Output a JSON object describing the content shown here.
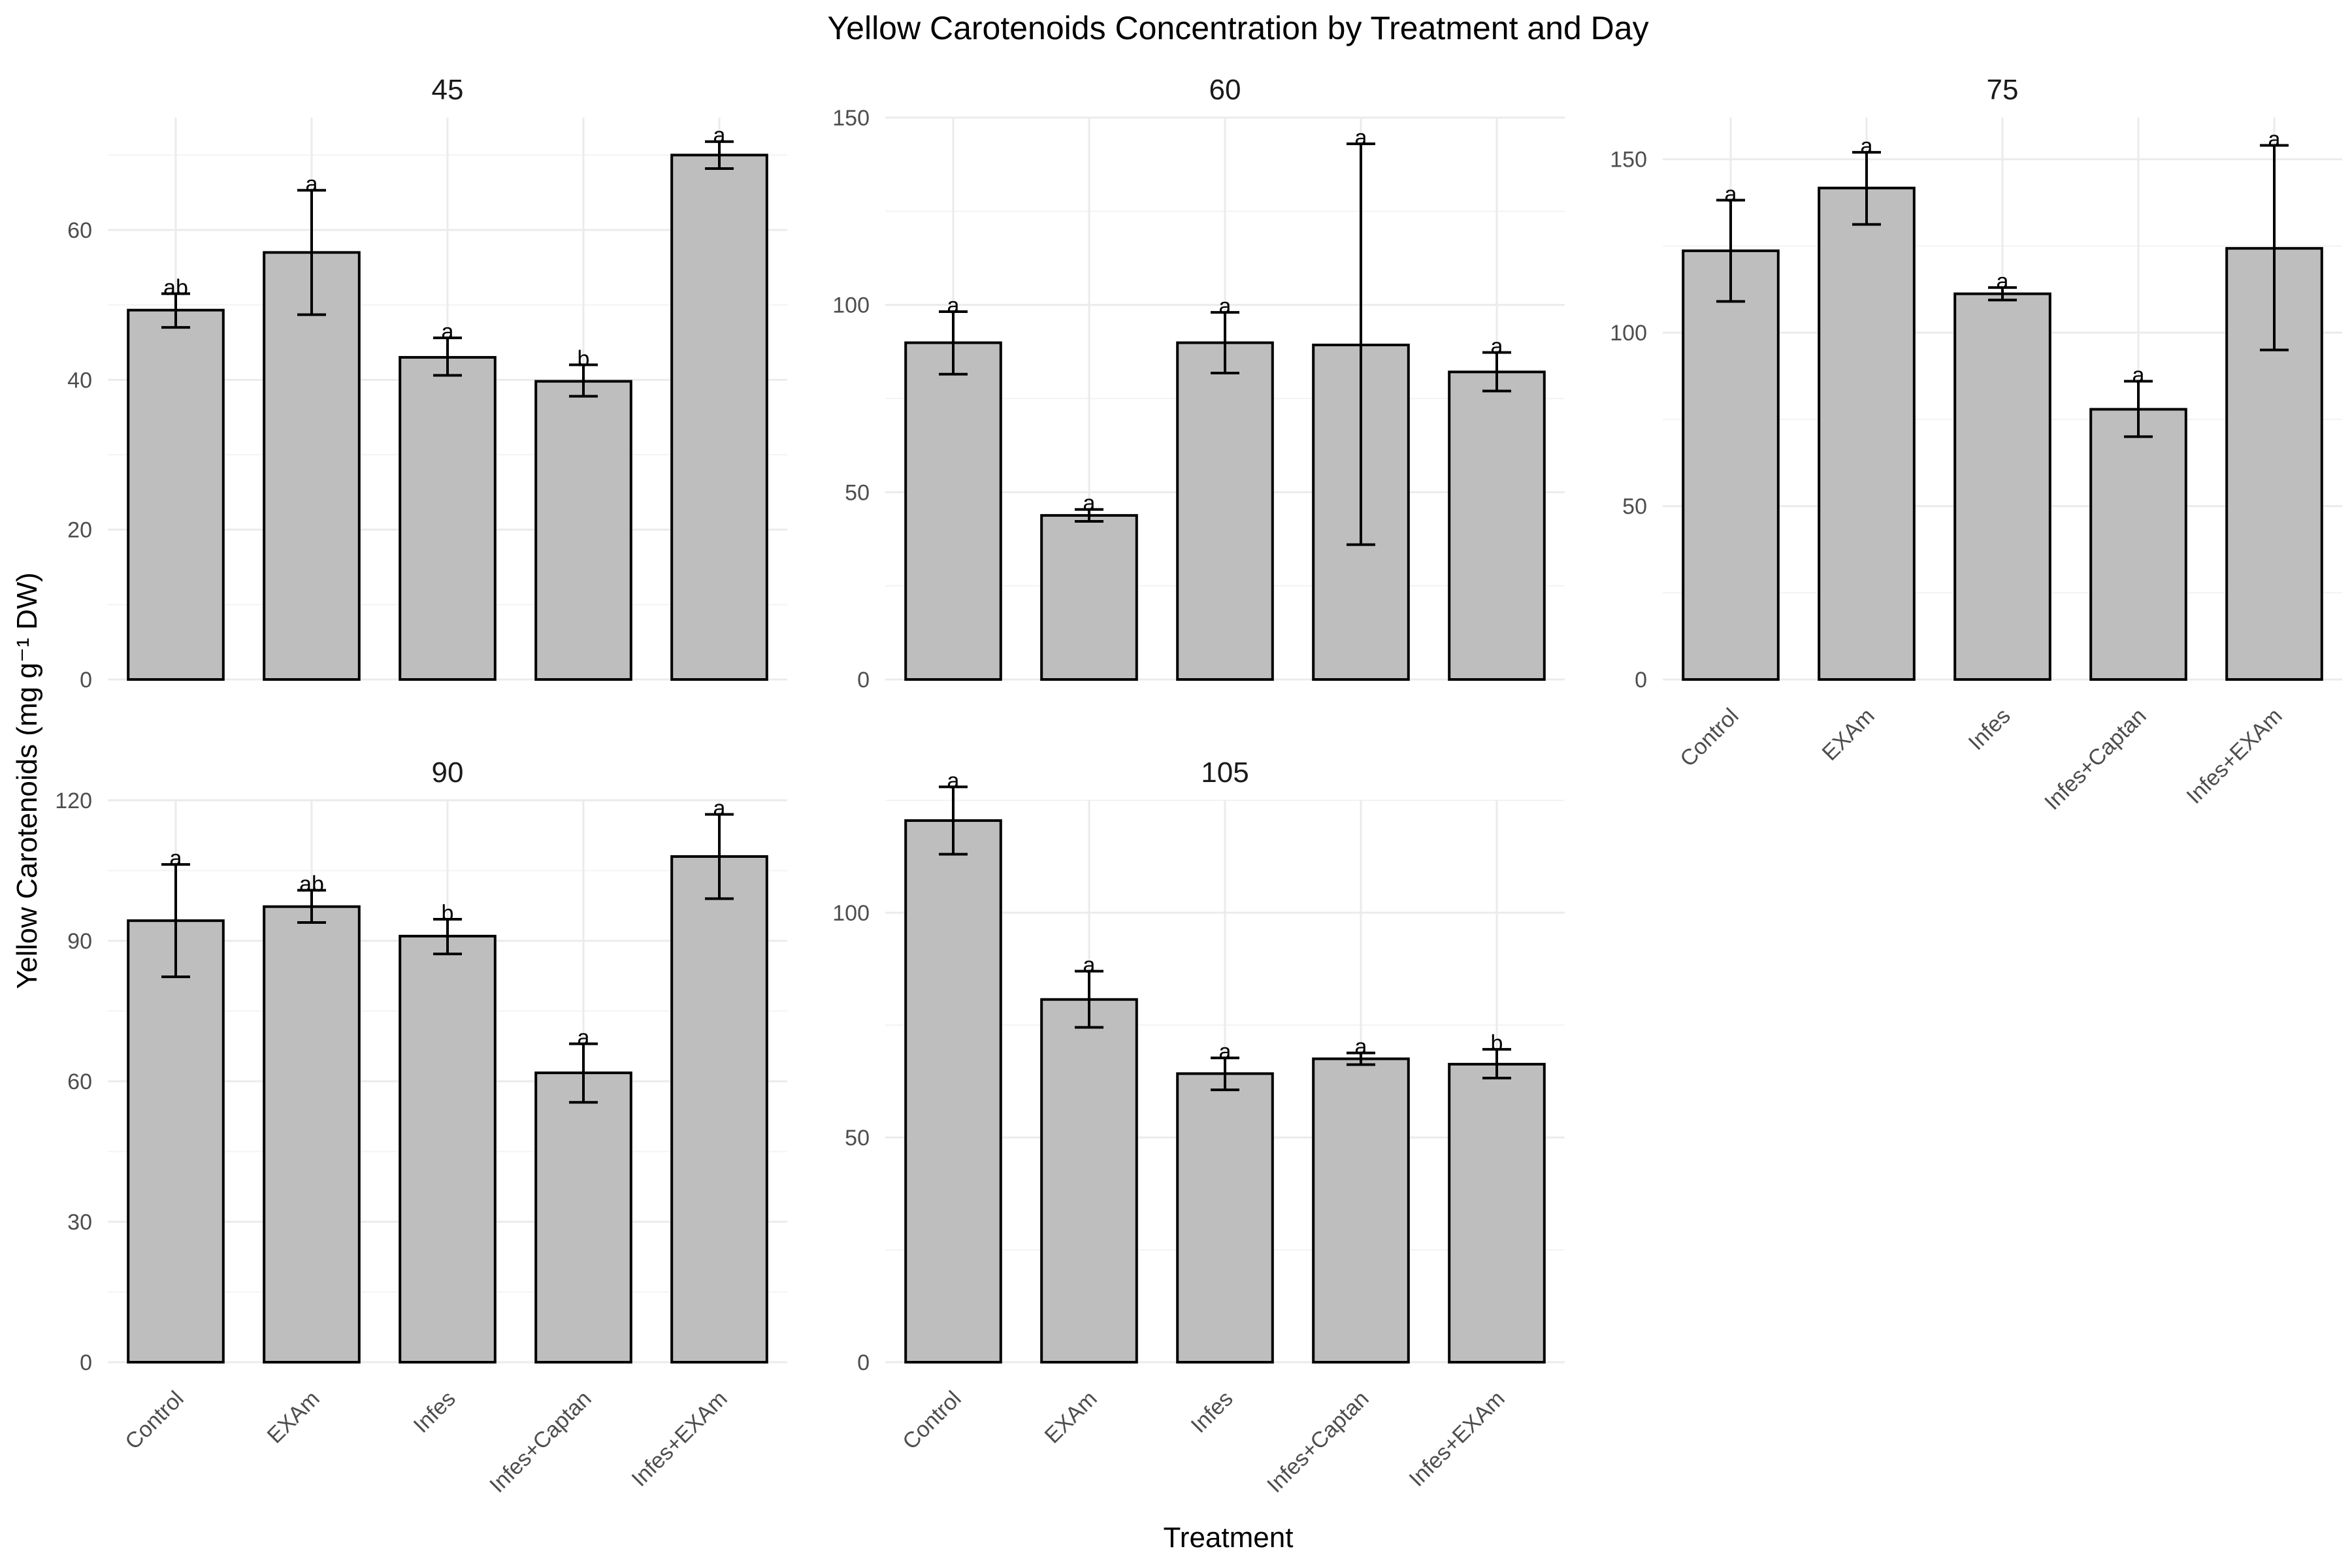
{
  "chart_data": {
    "type": "bar",
    "title": "Yellow Carotenoids Concentration by Treatment and Day",
    "xlabel": "Treatment",
    "ylabel": "Yellow Carotenoids (mg g⁻¹ DW)",
    "categories": [
      "Control",
      "EXAm",
      "Infes",
      "Infes+Captan",
      "Infes+EXAm"
    ],
    "grid": true,
    "legend": "none",
    "bar_color": "#bebebe",
    "panels": [
      {
        "facet": "45",
        "ylim": [
          0,
          75
        ],
        "yticks": [
          0,
          20,
          40,
          60
        ],
        "values": [
          49.3,
          57.0,
          43.0,
          39.8,
          70.0
        ],
        "error_low": [
          47.0,
          48.7,
          40.6,
          37.8,
          68.2
        ],
        "error_high": [
          51.5,
          65.3,
          45.6,
          42.0,
          71.8
        ],
        "labels": [
          "ab",
          "a",
          "a",
          "b",
          "a"
        ]
      },
      {
        "facet": "60",
        "ylim": [
          0,
          150
        ],
        "yticks": [
          0,
          50,
          100,
          150
        ],
        "values": [
          89.9,
          43.8,
          89.9,
          89.3,
          82.1
        ],
        "error_low": [
          81.5,
          42.2,
          81.8,
          36.0,
          77.0
        ],
        "error_high": [
          98.2,
          45.4,
          98.0,
          143.0,
          87.3
        ],
        "labels": [
          "a",
          "a",
          "a",
          "a",
          "a"
        ]
      },
      {
        "facet": "75",
        "ylim": [
          0,
          162
        ],
        "yticks": [
          0,
          50,
          100,
          150
        ],
        "values": [
          123.6,
          141.7,
          111.2,
          77.9,
          124.3
        ],
        "error_low": [
          109.0,
          131.2,
          109.4,
          70.0,
          95.0
        ],
        "error_high": [
          138.2,
          152.0,
          113.0,
          86.0,
          154.0
        ],
        "labels": [
          "a",
          "a",
          "a",
          "a",
          "a"
        ]
      },
      {
        "facet": "90",
        "ylim": [
          0,
          120
        ],
        "yticks": [
          0,
          30,
          60,
          90,
          120
        ],
        "values": [
          94.3,
          97.3,
          91.0,
          61.8,
          108.0
        ],
        "error_low": [
          82.3,
          93.9,
          87.2,
          55.5,
          99.0
        ],
        "error_high": [
          106.3,
          100.8,
          94.6,
          68.0,
          117.0
        ],
        "labels": [
          "a",
          "ab",
          "b",
          "a",
          "a"
        ]
      },
      {
        "facet": "105",
        "ylim": [
          0,
          125
        ],
        "yticks": [
          0,
          50,
          100
        ],
        "values": [
          120.5,
          80.7,
          64.2,
          67.5,
          66.3
        ],
        "error_low": [
          113.0,
          74.5,
          60.6,
          66.2,
          63.2
        ],
        "error_high": [
          128.0,
          87.0,
          67.7,
          68.8,
          69.6
        ],
        "labels": [
          "a",
          "a",
          "a",
          "a",
          "b"
        ]
      }
    ]
  }
}
